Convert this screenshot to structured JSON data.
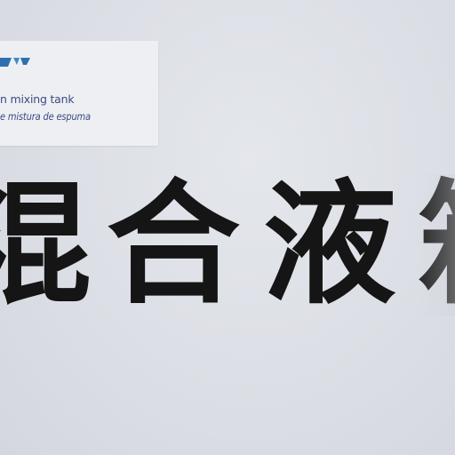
{
  "scene": {
    "description_colors": {
      "wall": "#dde0e6",
      "card": "#eeeff2",
      "label_text": "#3a4a86",
      "sign_text": "#151515"
    }
  },
  "label_card": {
    "logo_icon": "logo-mark",
    "line_en": "n mixing tank",
    "line_es": "e mistura de espuma"
  },
  "sign": {
    "chars": [
      "混",
      "合",
      "液",
      "箱"
    ]
  }
}
